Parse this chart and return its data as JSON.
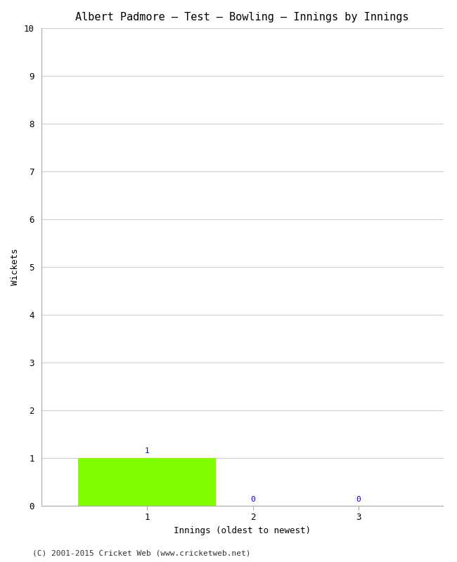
{
  "title": "Albert Padmore – Test – Bowling – Innings by Innings",
  "xlabel": "Innings (oldest to newest)",
  "ylabel": "Wickets",
  "categories": [
    1,
    2,
    3
  ],
  "values": [
    1,
    0,
    0
  ],
  "bar_color_nonzero": "#7fff00",
  "ylim": [
    0,
    10
  ],
  "yticks": [
    0,
    1,
    2,
    3,
    4,
    5,
    6,
    7,
    8,
    9,
    10
  ],
  "xticks": [
    1,
    2,
    3
  ],
  "xlim": [
    0.0,
    3.8
  ],
  "background_color": "#ffffff",
  "grid_color": "#d0d0d0",
  "footer": "(C) 2001-2015 Cricket Web (www.cricketweb.net)",
  "title_fontsize": 11,
  "axis_label_fontsize": 9,
  "tick_fontsize": 9,
  "footer_fontsize": 8,
  "bar_width": 1.3,
  "annotation_fontsize": 8,
  "annotation_color": "#0000cc"
}
